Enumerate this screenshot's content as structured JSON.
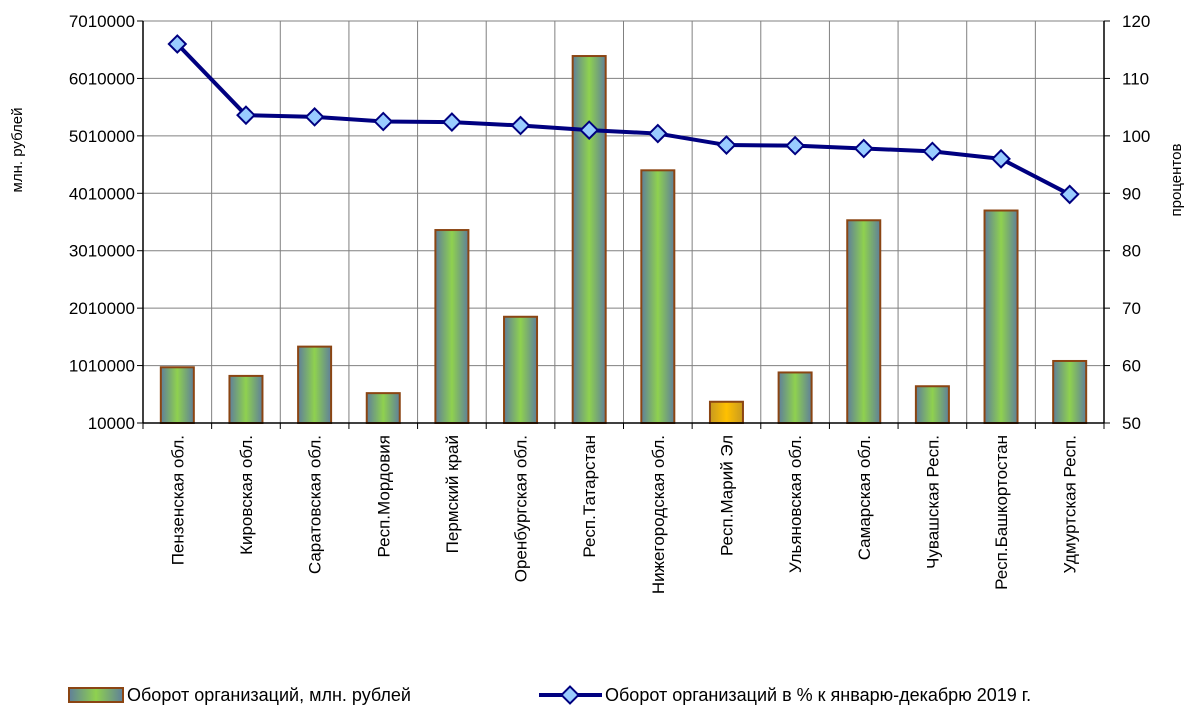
{
  "chart_data": {
    "type": "bar",
    "categories": [
      "Пензенская обл.",
      "Кировская обл.",
      "Саратовская обл.",
      "Респ.Мордовия",
      "Пермский край",
      "Оренбургская обл.",
      "Респ.Татарстан",
      "Нижегородская обл.",
      "Респ.Марий Эл",
      "Ульяновская обл.",
      "Самарская обл.",
      "Чувашская Респ.",
      "Респ.Башкортостан",
      "Удмуртская Респ."
    ],
    "series": [
      {
        "name": "Оборот организаций, млн. рублей",
        "type": "bar",
        "axis": "left",
        "values": [
          980000,
          830000,
          1340000,
          530000,
          3370000,
          1860000,
          6400000,
          4410000,
          380000,
          890000,
          3540000,
          650000,
          3710000,
          1090000
        ]
      },
      {
        "name": "Оборот организаций в % к январю-декабрю 2019 г.",
        "type": "line",
        "axis": "right",
        "values": [
          116.0,
          103.6,
          103.3,
          102.5,
          102.4,
          101.8,
          101.0,
          100.4,
          98.4,
          98.3,
          97.8,
          97.3,
          96.0,
          89.8
        ]
      }
    ],
    "ylabel": "млн. рублей",
    "y2label": "процентов",
    "ylim": [
      10000,
      7010000
    ],
    "y2lim": [
      50,
      120
    ],
    "yticks": [
      "7010000",
      "6010000",
      "5010000",
      "4010000",
      "3010000",
      "2010000",
      "1010000",
      "10000"
    ],
    "y2ticks": [
      "120",
      "110",
      "100",
      "90",
      "80",
      "70",
      "60",
      "50"
    ],
    "grid": true,
    "legend_position": "bottom",
    "colors": {
      "bar_fill": "#8fd14f",
      "bar_edge": "#5f7f9a",
      "bar_border": "#8b4513",
      "highlight_bar": "#ffc000",
      "line": "#000080",
      "marker_fill": "#99ccff",
      "grid": "#808080"
    },
    "highlight_index": 8
  }
}
